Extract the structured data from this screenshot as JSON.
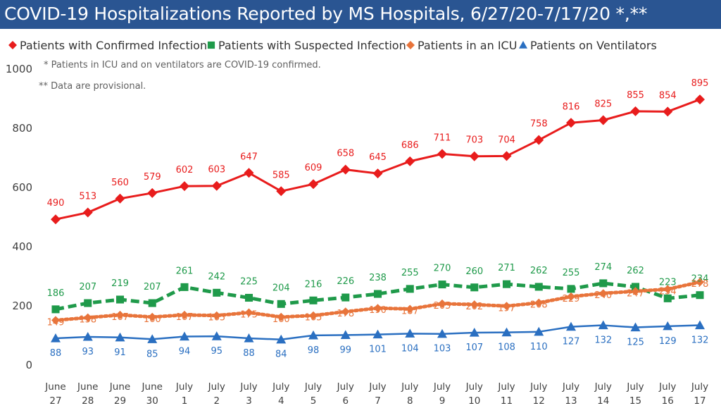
{
  "page": {
    "title": "COVID-19 Hospitalizations Reported by MS Hospitals, 6/27/20-7/17/20 *,**",
    "notes": [
      "* Patients in ICU and on ventilators are COVID-19 confirmed.",
      "** Data are provisional."
    ]
  },
  "colors": {
    "confirmed": "#e81c1c",
    "suspected": "#1f9a4a",
    "icu": "#e8743b",
    "ventilators": "#2a6fc1",
    "axis_text": "#404040",
    "title_bg": "#2a5592"
  },
  "chart_data": {
    "type": "line",
    "title": "COVID-19 Hospitalizations Reported by MS Hospitals, 6/27/20-7/17/20 *,**",
    "xlabel": "",
    "ylabel": "",
    "ylim": [
      0,
      1000
    ],
    "yticks": [
      0,
      200,
      400,
      600,
      800,
      1000
    ],
    "grid": false,
    "legend_position": "top-left",
    "categories": [
      [
        "June",
        "27"
      ],
      [
        "June",
        "28"
      ],
      [
        "June",
        "29"
      ],
      [
        "June",
        "30"
      ],
      [
        "July",
        "1"
      ],
      [
        "July",
        "2"
      ],
      [
        "July",
        "3"
      ],
      [
        "July",
        "4"
      ],
      [
        "July",
        "5"
      ],
      [
        "July",
        "6"
      ],
      [
        "July",
        "7"
      ],
      [
        "July",
        "8"
      ],
      [
        "July",
        "9"
      ],
      [
        "July",
        "10"
      ],
      [
        "July",
        "11"
      ],
      [
        "July",
        "12"
      ],
      [
        "July",
        "13"
      ],
      [
        "July",
        "14"
      ],
      [
        "July",
        "15"
      ],
      [
        "July",
        "16"
      ],
      [
        "July",
        "17"
      ]
    ],
    "series": [
      {
        "name": "Patients with Confirmed Infection",
        "key": "confirmed",
        "marker": "diamond",
        "style": "solid",
        "values": [
          490,
          513,
          560,
          579,
          602,
          603,
          647,
          585,
          609,
          658,
          645,
          686,
          711,
          703,
          704,
          758,
          816,
          825,
          855,
          854,
          895
        ]
      },
      {
        "name": "Patients with Suspected Infection",
        "key": "suspected",
        "marker": "square",
        "style": "dashed",
        "values": [
          186,
          207,
          219,
          207,
          261,
          242,
          225,
          204,
          216,
          226,
          238,
          255,
          270,
          260,
          271,
          262,
          255,
          274,
          262,
          223,
          234
        ]
      },
      {
        "name": "Patients in an ICU",
        "key": "icu",
        "marker": "diamond",
        "style": "dotted",
        "values": [
          149,
          158,
          167,
          160,
          167,
          165,
          175,
          160,
          165,
          178,
          190,
          187,
          205,
          202,
          197,
          208,
          229,
          240,
          247,
          254,
          278
        ]
      },
      {
        "name": "Patients on Ventilators",
        "key": "ventilators",
        "marker": "triangle",
        "style": "solid",
        "values": [
          88,
          93,
          91,
          85,
          94,
          95,
          88,
          84,
          98,
          99,
          101,
          104,
          103,
          107,
          108,
          110,
          127,
          132,
          125,
          129,
          132
        ]
      }
    ]
  }
}
